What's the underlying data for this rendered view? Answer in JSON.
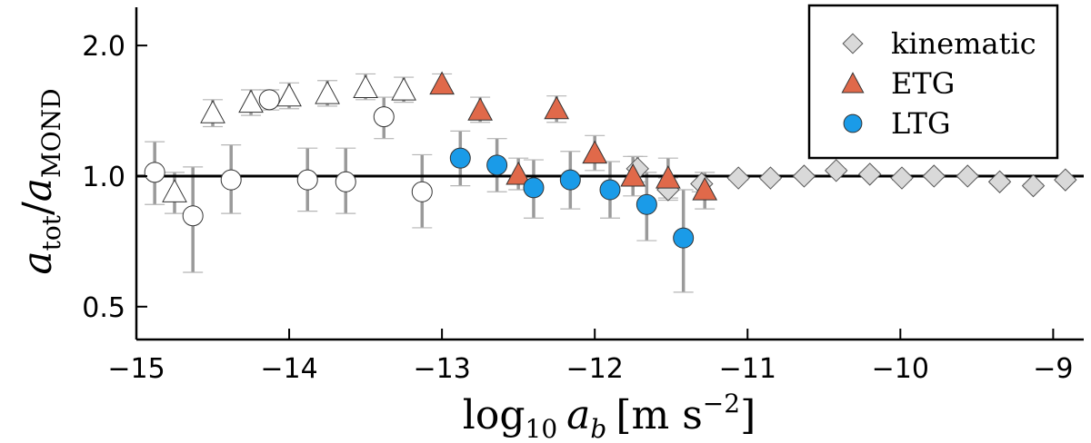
{
  "chart_data": {
    "type": "scatter",
    "xlabel": {
      "base": "log",
      "sub": "10",
      "var": "a",
      "var_sub": "b",
      "unit_open": "[m s",
      "unit_sup": "−2",
      "unit_close": "]"
    },
    "ylabel": {
      "num": "a",
      "num_sub": "tot",
      "den": "a",
      "den_sub": "MOND"
    },
    "xlim": [
      -15,
      -8.8
    ],
    "ylim_log": [
      0.42,
      2.45
    ],
    "y_scale": "log",
    "x_ticks": [
      -15,
      -14,
      -13,
      -12,
      -11,
      -10,
      -9
    ],
    "x_tick_labels": [
      "−15",
      "−14",
      "−13",
      "−12",
      "−11",
      "−10",
      "−9"
    ],
    "y_ticks": [
      0.5,
      1.0,
      2.0
    ],
    "y_tick_labels": [
      "0.5",
      "1.0",
      "2.0"
    ],
    "reference_line": 1.0,
    "legend": {
      "position": "top-right",
      "entries": [
        {
          "label": "kinematic",
          "marker": "diamond",
          "color": "#d9d9d9"
        },
        {
          "label": "ETG",
          "marker": "triangle",
          "color": "#e0694a"
        },
        {
          "label": "LTG",
          "marker": "circle",
          "color": "#1a9be8"
        }
      ]
    },
    "series": [
      {
        "name": "kinematic",
        "marker": "diamond",
        "color": "#d9d9d9",
        "points": [
          {
            "x": -11.72,
            "y": 1.04,
            "lo": 0.97,
            "hi": 1.11
          },
          {
            "x": -11.52,
            "y": 0.93,
            "lo": 0.88,
            "hi": 0.99
          },
          {
            "x": -11.3,
            "y": 0.96,
            "lo": 0.92,
            "hi": 1.0
          },
          {
            "x": -11.06,
            "y": 0.99,
            "lo": 0.98,
            "hi": 1.0
          },
          {
            "x": -10.85,
            "y": 0.99,
            "lo": 0.98,
            "hi": 1.0
          },
          {
            "x": -10.63,
            "y": 1.0,
            "lo": 0.99,
            "hi": 1.01
          },
          {
            "x": -10.42,
            "y": 1.03,
            "lo": 1.02,
            "hi": 1.04
          },
          {
            "x": -10.2,
            "y": 1.01,
            "lo": 1.0,
            "hi": 1.02
          },
          {
            "x": -9.99,
            "y": 0.99,
            "lo": 0.98,
            "hi": 1.0
          },
          {
            "x": -9.78,
            "y": 1.0,
            "lo": 0.99,
            "hi": 1.01
          },
          {
            "x": -9.56,
            "y": 1.0,
            "lo": 0.99,
            "hi": 1.01
          },
          {
            "x": -9.35,
            "y": 0.97,
            "lo": 0.96,
            "hi": 0.98
          },
          {
            "x": -9.13,
            "y": 0.95,
            "lo": 0.94,
            "hi": 0.96
          },
          {
            "x": -8.92,
            "y": 0.98,
            "lo": 0.97,
            "hi": 0.99
          }
        ]
      },
      {
        "name": "ETG",
        "marker": "triangle",
        "color": "#e0694a",
        "points": [
          {
            "x": -13.0,
            "y": 1.63,
            "lo": 1.55,
            "hi": 1.72
          },
          {
            "x": -12.75,
            "y": 1.42,
            "lo": 1.33,
            "hi": 1.52
          },
          {
            "x": -12.5,
            "y": 1.01,
            "lo": 0.93,
            "hi": 1.1
          },
          {
            "x": -12.25,
            "y": 1.43,
            "lo": 1.33,
            "hi": 1.53
          },
          {
            "x": -12.0,
            "y": 1.13,
            "lo": 1.03,
            "hi": 1.24
          },
          {
            "x": -11.75,
            "y": 1.0,
            "lo": 0.9,
            "hi": 1.11
          },
          {
            "x": -11.52,
            "y": 0.99,
            "lo": 0.89,
            "hi": 1.1
          },
          {
            "x": -11.28,
            "y": 0.93,
            "lo": 0.84,
            "hi": 1.02
          }
        ]
      },
      {
        "name": "LTG",
        "marker": "circle",
        "color": "#1a9be8",
        "points": [
          {
            "x": -12.88,
            "y": 1.1,
            "lo": 0.95,
            "hi": 1.27
          },
          {
            "x": -12.64,
            "y": 1.06,
            "lo": 0.92,
            "hi": 1.22
          },
          {
            "x": -12.4,
            "y": 0.94,
            "lo": 0.8,
            "hi": 1.09
          },
          {
            "x": -12.16,
            "y": 0.98,
            "lo": 0.84,
            "hi": 1.14
          },
          {
            "x": -11.9,
            "y": 0.93,
            "lo": 0.8,
            "hi": 1.08
          },
          {
            "x": -11.66,
            "y": 0.86,
            "lo": 0.71,
            "hi": 1.02
          },
          {
            "x": -11.42,
            "y": 0.72,
            "lo": 0.54,
            "hi": 0.93
          }
        ]
      },
      {
        "marker": "circle-open",
        "color": "#ffffff",
        "points": [
          {
            "x": -14.88,
            "y": 1.02,
            "lo": 0.86,
            "hi": 1.2
          },
          {
            "x": -14.63,
            "y": 0.81,
            "lo": 0.6,
            "hi": 1.05
          },
          {
            "x": -14.38,
            "y": 0.98,
            "lo": 0.82,
            "hi": 1.18
          },
          {
            "x": -14.13,
            "y": 1.5,
            "lo": 1.42,
            "hi": 1.58
          },
          {
            "x": -13.88,
            "y": 0.98,
            "lo": 0.83,
            "hi": 1.16
          },
          {
            "x": -13.63,
            "y": 0.97,
            "lo": 0.82,
            "hi": 1.16
          },
          {
            "x": -13.38,
            "y": 1.37,
            "lo": 1.22,
            "hi": 1.52
          },
          {
            "x": -13.13,
            "y": 0.92,
            "lo": 0.76,
            "hi": 1.12
          }
        ]
      },
      {
        "marker": "triangle-open",
        "color": "#ffffff",
        "points": [
          {
            "x": -14.75,
            "y": 0.92,
            "lo": 0.82,
            "hi": 1.02
          },
          {
            "x": -14.5,
            "y": 1.4,
            "lo": 1.3,
            "hi": 1.5
          },
          {
            "x": -14.25,
            "y": 1.48,
            "lo": 1.38,
            "hi": 1.58
          },
          {
            "x": -14.0,
            "y": 1.53,
            "lo": 1.43,
            "hi": 1.64
          },
          {
            "x": -13.75,
            "y": 1.55,
            "lo": 1.45,
            "hi": 1.66
          },
          {
            "x": -13.5,
            "y": 1.6,
            "lo": 1.5,
            "hi": 1.72
          },
          {
            "x": -13.25,
            "y": 1.58,
            "lo": 1.48,
            "hi": 1.69
          }
        ]
      }
    ]
  }
}
